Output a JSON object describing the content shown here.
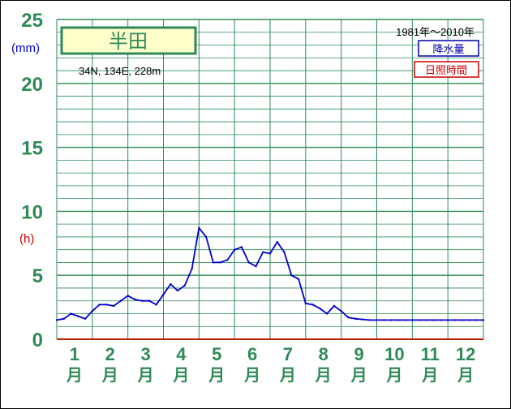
{
  "chart_data": {
    "type": "line",
    "title": "半田",
    "coords": "34N, 134E, 228m",
    "period": "1981年〜2010年",
    "units": {
      "precip": "(mm)",
      "sun": "(h)"
    },
    "legend": [
      {
        "name": "降水量",
        "color": "#0000aa"
      },
      {
        "name": "日照時間",
        "color": "#cc0000"
      }
    ],
    "colors": {
      "grid": "#2e8b57",
      "axis_text": "#2e8b57",
      "line": "#0000cc",
      "baseline": "#bb2200"
    },
    "ylim": [
      0,
      25
    ],
    "yticks": [
      "0",
      "5",
      "10",
      "15",
      "20",
      "25"
    ],
    "months": [
      "1",
      "2",
      "3",
      "4",
      "5",
      "6",
      "7",
      "8",
      "9",
      "10",
      "11",
      "12"
    ],
    "month_suffix": "月",
    "series": [
      {
        "name": "降水量",
        "x": [
          1,
          1.2,
          1.4,
          1.6,
          1.8,
          2.0,
          2.2,
          2.4,
          2.6,
          2.8,
          3.0,
          3.2,
          3.4,
          3.6,
          3.8,
          4.0,
          4.2,
          4.4,
          4.6,
          4.8,
          5.0,
          5.2,
          5.4,
          5.6,
          5.8,
          6.0,
          6.2,
          6.4,
          6.6,
          6.8,
          7.0,
          7.2,
          7.4,
          7.6,
          7.8,
          8.0,
          8.2,
          8.4,
          8.6,
          8.8,
          9.0,
          9.2,
          9.4,
          9.6,
          9.8,
          10.0,
          10.2,
          10.4,
          10.6,
          10.8,
          11.0,
          11.2,
          11.4,
          11.6,
          11.8,
          12.0,
          12.2,
          12.4,
          12.6,
          12.8,
          13.0
        ],
        "values": [
          1.5,
          1.6,
          2.0,
          1.8,
          1.6,
          2.2,
          2.7,
          2.7,
          2.6,
          3.0,
          3.4,
          3.1,
          3.0,
          3.0,
          2.7,
          3.5,
          4.3,
          3.8,
          4.2,
          5.5,
          8.7,
          8.0,
          6.0,
          6.0,
          6.2,
          7.0,
          7.2,
          6.0,
          5.7,
          6.8,
          6.7,
          7.6,
          6.8,
          5.0,
          4.7,
          2.8,
          2.7,
          2.4,
          2.0,
          2.6,
          2.2,
          1.7,
          1.6,
          1.55,
          1.5,
          1.5,
          1.5,
          1.5,
          1.5,
          1.5,
          1.5,
          1.5,
          1.5,
          1.5,
          1.5,
          1.5,
          1.5,
          1.5,
          1.5,
          1.5,
          1.5
        ]
      }
    ],
    "grid": true
  }
}
